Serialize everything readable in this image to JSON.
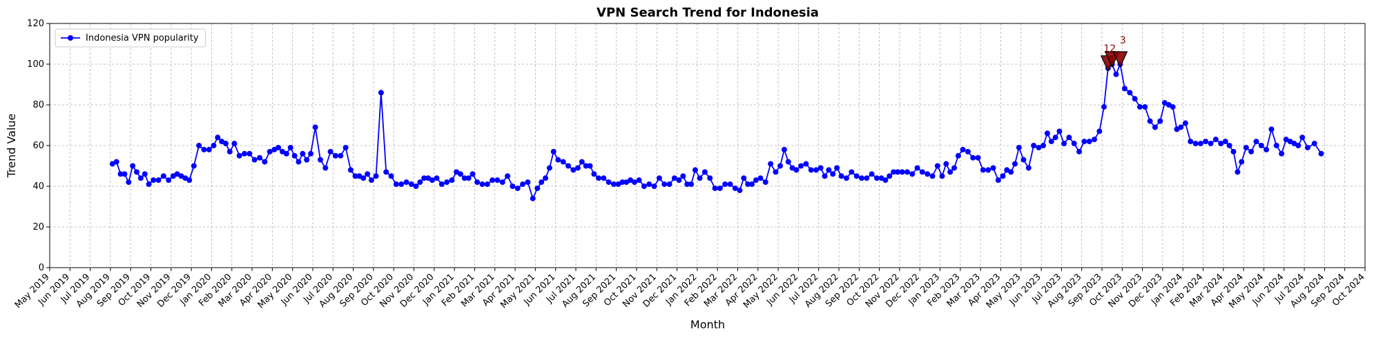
{
  "chart_data": {
    "type": "line",
    "title": "VPN Search Trend for Indonesia",
    "x_label": "Month",
    "y_label": "Trend Value",
    "grid": true,
    "legend": "upper left",
    "xlim": [
      "2019-05",
      "2024-10"
    ],
    "xticks": [
      {
        "value": "2019-05",
        "label": "May 2019"
      },
      {
        "value": "2019-06",
        "label": "Jun 2019"
      },
      {
        "value": "2019-07",
        "label": "Jul 2019"
      },
      {
        "value": "2019-08",
        "label": "Aug 2019"
      },
      {
        "value": "2019-09",
        "label": "Sep 2019"
      },
      {
        "value": "2019-10",
        "label": "Oct 2019"
      },
      {
        "value": "2019-11",
        "label": "Nov 2019"
      },
      {
        "value": "2019-12",
        "label": "Dec 2019"
      },
      {
        "value": "2020-01",
        "label": "Jan 2020"
      },
      {
        "value": "2020-02",
        "label": "Feb 2020"
      },
      {
        "value": "2020-03",
        "label": "Mar 2020"
      },
      {
        "value": "2020-04",
        "label": "Apr 2020"
      },
      {
        "value": "2020-05",
        "label": "May 2020"
      },
      {
        "value": "2020-06",
        "label": "Jun 2020"
      },
      {
        "value": "2020-07",
        "label": "Jul 2020"
      },
      {
        "value": "2020-08",
        "label": "Aug 2020"
      },
      {
        "value": "2020-09",
        "label": "Sep 2020"
      },
      {
        "value": "2020-10",
        "label": "Oct 2020"
      },
      {
        "value": "2020-11",
        "label": "Nov 2020"
      },
      {
        "value": "2020-12",
        "label": "Dec 2020"
      },
      {
        "value": "2021-01",
        "label": "Jan 2021"
      },
      {
        "value": "2021-02",
        "label": "Feb 2021"
      },
      {
        "value": "2021-03",
        "label": "Mar 2021"
      },
      {
        "value": "2021-04",
        "label": "Apr 2021"
      },
      {
        "value": "2021-05",
        "label": "May 2021"
      },
      {
        "value": "2021-06",
        "label": "Jun 2021"
      },
      {
        "value": "2021-07",
        "label": "Jul 2021"
      },
      {
        "value": "2021-08",
        "label": "Aug 2021"
      },
      {
        "value": "2021-09",
        "label": "Sep 2021"
      },
      {
        "value": "2021-10",
        "label": "Oct 2021"
      },
      {
        "value": "2021-11",
        "label": "Nov 2021"
      },
      {
        "value": "2021-12",
        "label": "Dec 2021"
      },
      {
        "value": "2022-01",
        "label": "Jan 2022"
      },
      {
        "value": "2022-02",
        "label": "Feb 2022"
      },
      {
        "value": "2022-03",
        "label": "Mar 2022"
      },
      {
        "value": "2022-04",
        "label": "Apr 2022"
      },
      {
        "value": "2022-05",
        "label": "May 2022"
      },
      {
        "value": "2022-06",
        "label": "Jun 2022"
      },
      {
        "value": "2022-07",
        "label": "Jul 2022"
      },
      {
        "value": "2022-08",
        "label": "Aug 2022"
      },
      {
        "value": "2022-09",
        "label": "Sep 2022"
      },
      {
        "value": "2022-10",
        "label": "Oct 2022"
      },
      {
        "value": "2022-11",
        "label": "Nov 2022"
      },
      {
        "value": "2022-12",
        "label": "Dec 2022"
      },
      {
        "value": "2023-01",
        "label": "Jan 2023"
      },
      {
        "value": "2023-02",
        "label": "Feb 2023"
      },
      {
        "value": "2023-03",
        "label": "Mar 2023"
      },
      {
        "value": "2023-04",
        "label": "Apr 2023"
      },
      {
        "value": "2023-05",
        "label": "May 2023"
      },
      {
        "value": "2023-06",
        "label": "Jun 2023"
      },
      {
        "value": "2023-07",
        "label": "Jul 2023"
      },
      {
        "value": "2023-08",
        "label": "Aug 2023"
      },
      {
        "value": "2023-09",
        "label": "Sep 2023"
      },
      {
        "value": "2023-10",
        "label": "Oct 2023"
      },
      {
        "value": "2023-11",
        "label": "Nov 2023"
      },
      {
        "value": "2023-12",
        "label": "Dec 2023"
      },
      {
        "value": "2024-01",
        "label": "Jan 2024"
      },
      {
        "value": "2024-02",
        "label": "Feb 2024"
      },
      {
        "value": "2024-03",
        "label": "Mar 2024"
      },
      {
        "value": "2024-04",
        "label": "Apr 2024"
      },
      {
        "value": "2024-05",
        "label": "May 2024"
      },
      {
        "value": "2024-06",
        "label": "Jun 2024"
      },
      {
        "value": "2024-07",
        "label": "Jul 2024"
      },
      {
        "value": "2024-08",
        "label": "Aug 2024"
      },
      {
        "value": "2024-09",
        "label": "Sep 2024"
      },
      {
        "value": "2024-10",
        "label": "Oct 2024"
      }
    ],
    "ylim": [
      0,
      120
    ],
    "yticks": [
      0,
      20,
      40,
      60,
      80,
      100,
      120
    ],
    "series": [
      {
        "name": "Indonesia VPN popularity",
        "color": "#0000ff",
        "x": [
          "2019-08",
          "2019-08",
          "2019-08",
          "2019-08",
          "2019-08",
          "2019-09",
          "2019-09",
          "2019-09",
          "2019-09",
          "2019-09",
          "2019-10",
          "2019-10",
          "2019-10",
          "2019-10",
          "2019-11",
          "2019-11",
          "2019-11",
          "2019-11",
          "2019-11",
          "2019-12",
          "2019-12",
          "2019-12",
          "2019-12",
          "2020-01",
          "2020-01",
          "2020-01",
          "2020-01",
          "2020-01",
          "2020-02",
          "2020-02",
          "2020-02",
          "2020-02",
          "2020-03",
          "2020-03",
          "2020-03",
          "2020-03",
          "2020-04",
          "2020-04",
          "2020-04",
          "2020-04",
          "2020-04",
          "2020-05",
          "2020-05",
          "2020-05",
          "2020-05",
          "2020-05",
          "2020-06",
          "2020-06",
          "2020-06",
          "2020-06",
          "2020-07",
          "2020-07",
          "2020-07",
          "2020-07",
          "2020-08",
          "2020-08",
          "2020-08",
          "2020-08",
          "2020-08",
          "2020-09",
          "2020-09",
          "2020-09",
          "2020-09",
          "2020-10",
          "2020-10",
          "2020-10",
          "2020-10",
          "2020-11",
          "2020-11",
          "2020-11",
          "2020-11",
          "2020-11",
          "2020-12",
          "2020-12",
          "2020-12",
          "2020-12",
          "2021-01",
          "2021-01",
          "2021-01",
          "2021-01",
          "2021-01",
          "2021-02",
          "2021-02",
          "2021-02",
          "2021-02",
          "2021-03",
          "2021-03",
          "2021-03",
          "2021-03",
          "2021-04",
          "2021-04",
          "2021-04",
          "2021-04",
          "2021-05",
          "2021-05",
          "2021-05",
          "2021-05",
          "2021-05",
          "2021-06",
          "2021-06",
          "2021-06",
          "2021-06",
          "2021-07",
          "2021-07",
          "2021-07",
          "2021-07",
          "2021-07",
          "2021-08",
          "2021-08",
          "2021-08",
          "2021-08",
          "2021-09",
          "2021-09",
          "2021-09",
          "2021-09",
          "2021-09",
          "2021-10",
          "2021-10",
          "2021-10",
          "2021-10",
          "2021-11",
          "2021-11",
          "2021-11",
          "2021-11",
          "2021-12",
          "2021-12",
          "2021-12",
          "2021-12",
          "2021-12",
          "2022-01",
          "2022-01",
          "2022-01",
          "2022-01",
          "2022-02",
          "2022-02",
          "2022-02",
          "2022-02",
          "2022-03",
          "2022-03",
          "2022-03",
          "2022-03",
          "2022-03",
          "2022-04",
          "2022-04",
          "2022-04",
          "2022-04",
          "2022-05",
          "2022-05",
          "2022-05",
          "2022-05",
          "2022-05",
          "2022-06",
          "2022-06",
          "2022-06",
          "2022-06",
          "2022-07",
          "2022-07",
          "2022-07",
          "2022-07",
          "2022-07",
          "2022-08",
          "2022-08",
          "2022-08",
          "2022-08",
          "2022-09",
          "2022-09",
          "2022-09",
          "2022-09",
          "2022-10",
          "2022-10",
          "2022-10",
          "2022-10",
          "2022-10",
          "2022-11",
          "2022-11",
          "2022-11",
          "2022-11",
          "2022-12",
          "2022-12",
          "2022-12",
          "2022-12",
          "2023-01",
          "2023-01",
          "2023-01",
          "2023-01",
          "2023-01",
          "2023-02",
          "2023-02",
          "2023-02",
          "2023-02",
          "2023-03",
          "2023-03",
          "2023-03",
          "2023-03",
          "2023-04",
          "2023-04",
          "2023-04",
          "2023-04",
          "2023-04",
          "2023-05",
          "2023-05",
          "2023-05",
          "2023-05",
          "2023-06",
          "2023-06",
          "2023-06",
          "2023-06",
          "2023-06",
          "2023-07",
          "2023-07",
          "2023-07",
          "2023-07",
          "2023-08",
          "2023-08",
          "2023-08",
          "2023-08",
          "2023-09",
          "2023-09",
          "2023-09",
          "2023-09",
          "2023-09",
          "2023-10",
          "2023-10",
          "2023-10",
          "2023-10",
          "2023-11",
          "2023-11",
          "2023-11",
          "2023-11",
          "2023-12",
          "2023-12",
          "2023-12",
          "2023-12",
          "2023-12",
          "2024-01",
          "2024-01",
          "2024-01",
          "2024-01",
          "2024-02",
          "2024-02",
          "2024-02",
          "2024-02",
          "2024-03",
          "2024-03",
          "2024-03",
          "2024-03",
          "2024-03",
          "2024-04",
          "2024-04",
          "2024-04",
          "2024-04",
          "2024-05",
          "2024-05",
          "2024-05",
          "2024-05",
          "2024-06",
          "2024-06",
          "2024-06",
          "2024-06",
          "2024-06",
          "2024-07",
          "2024-07",
          "2024-07"
        ],
        "values": [
          51,
          52,
          46,
          46,
          42,
          50,
          47,
          44,
          46,
          41,
          43,
          43,
          45,
          43,
          45,
          46,
          45,
          44,
          43,
          50,
          60,
          58,
          58,
          60,
          64,
          62,
          61,
          57,
          61,
          55,
          56,
          56,
          53,
          54,
          52,
          57,
          58,
          59,
          57,
          56,
          59,
          55,
          52,
          56,
          53,
          56,
          69,
          53,
          49,
          57,
          55,
          55,
          59,
          48,
          45,
          45,
          44,
          46,
          43,
          45,
          86,
          47,
          45,
          41,
          41,
          42,
          41,
          40,
          42,
          44,
          44,
          43,
          44,
          41,
          42,
          43,
          47,
          46,
          44,
          44,
          46,
          42,
          41,
          41,
          43,
          43,
          42,
          45,
          40,
          39,
          41,
          42,
          34,
          39,
          42,
          44,
          49,
          57,
          53,
          52,
          50,
          48,
          49,
          52,
          50,
          50,
          46,
          44,
          44,
          42,
          41,
          41,
          42,
          42,
          43,
          42,
          43,
          40,
          41,
          40,
          44,
          41,
          41,
          44,
          43,
          45,
          41,
          41,
          48,
          44,
          47,
          44,
          39,
          39,
          41,
          41,
          39,
          38,
          44,
          41,
          41,
          43,
          44,
          42,
          51,
          47,
          50,
          58,
          52,
          49,
          48,
          50,
          51,
          48,
          48,
          49,
          45,
          48,
          46,
          49,
          45,
          44,
          47,
          45,
          44,
          44,
          46,
          44,
          44,
          43,
          45,
          47,
          47,
          47,
          47,
          46,
          49,
          47,
          46,
          45,
          50,
          45,
          51,
          47,
          49,
          55,
          58,
          57,
          54,
          54,
          48,
          48,
          49,
          43,
          45,
          48,
          47,
          51,
          59,
          53,
          49,
          60,
          59,
          60,
          66,
          62,
          64,
          67,
          61,
          64,
          61,
          57,
          62,
          62,
          63,
          67,
          79,
          98,
          100,
          95,
          100,
          88,
          86,
          83,
          79,
          79,
          72,
          69,
          72,
          81,
          80,
          79,
          68,
          69,
          71,
          62,
          61,
          61,
          62,
          61,
          63,
          61,
          62,
          60,
          57,
          47,
          52,
          59,
          57,
          62,
          60,
          58,
          68,
          60,
          56,
          63,
          62,
          61,
          60,
          64,
          59,
          61,
          56
        ]
      }
    ],
    "annotations": [
      {
        "text": "1",
        "x": "2023-09",
        "y": 98,
        "color": "#8b0000"
      },
      {
        "text": "2",
        "x": "2023-09",
        "y": 100,
        "color": "#8b0000"
      },
      {
        "text": "3",
        "x": "2023-09",
        "y": 100,
        "color": "#8b0000"
      }
    ]
  }
}
